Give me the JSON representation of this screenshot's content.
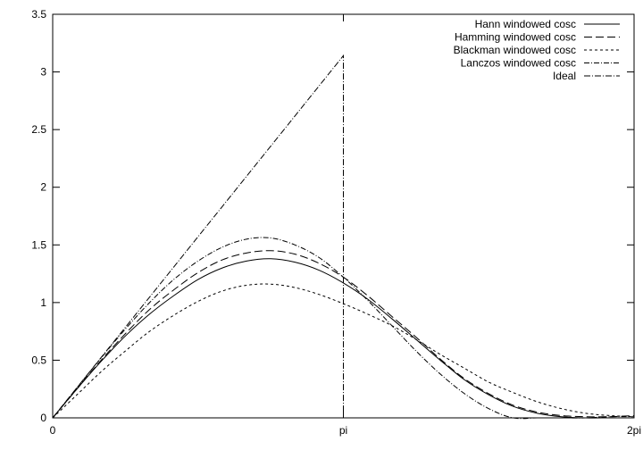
{
  "chart_data": {
    "type": "line",
    "title": "",
    "xlabel": "",
    "ylabel": "",
    "xlim": [
      0,
      6.283185307
    ],
    "ylim": [
      0,
      3.5
    ],
    "grid": false,
    "legend_position": "top-right",
    "x_ticks": [
      {
        "value": 0,
        "label": "0"
      },
      {
        "value": 3.141592654,
        "label": "pi"
      },
      {
        "value": 6.283185307,
        "label": "2pi"
      }
    ],
    "y_ticks": [
      {
        "value": 0,
        "label": "0"
      },
      {
        "value": 0.5,
        "label": "0.5"
      },
      {
        "value": 1,
        "label": "1"
      },
      {
        "value": 1.5,
        "label": "1.5"
      },
      {
        "value": 2,
        "label": "2"
      },
      {
        "value": 2.5,
        "label": "2.5"
      },
      {
        "value": 3,
        "label": "3"
      },
      {
        "value": 3.5,
        "label": "3.5"
      }
    ],
    "x": [
      0,
      0.2618,
      0.5236,
      0.7854,
      1.0472,
      1.309,
      1.5708,
      1.8326,
      2.0944,
      2.3562,
      2.618,
      2.8798,
      3.1416,
      3.4034,
      3.6652,
      3.927,
      4.1888,
      4.4506,
      4.7124,
      4.9742,
      5.236,
      5.4978,
      5.7596,
      6.0214,
      6.2832
    ],
    "series": [
      {
        "name": "Hann windowed cosc",
        "color": "#000000",
        "dash": "",
        "values": [
          0,
          0.25,
          0.49,
          0.71,
          0.9,
          1.06,
          1.2,
          1.3,
          1.36,
          1.38,
          1.35,
          1.28,
          1.17,
          1.03,
          0.86,
          0.68,
          0.5,
          0.33,
          0.2,
          0.1,
          0.04,
          0.01,
          0,
          0,
          0
        ]
      },
      {
        "name": "Hamming windowed cosc",
        "color": "#000000",
        "dash": "9 4",
        "values": [
          0,
          0.25,
          0.5,
          0.73,
          0.94,
          1.11,
          1.26,
          1.37,
          1.43,
          1.45,
          1.42,
          1.34,
          1.22,
          1.06,
          0.88,
          0.7,
          0.51,
          0.34,
          0.21,
          0.11,
          0.05,
          0.02,
          0.01,
          0.01,
          0.02
        ]
      },
      {
        "name": "Blackman windowed cosc",
        "color": "#000000",
        "dash": "3 3",
        "values": [
          0,
          0.2,
          0.4,
          0.58,
          0.75,
          0.89,
          1.01,
          1.1,
          1.15,
          1.16,
          1.13,
          1.07,
          0.99,
          0.9,
          0.8,
          0.68,
          0.55,
          0.43,
          0.31,
          0.22,
          0.14,
          0.08,
          0.04,
          0.02,
          0.01
        ]
      },
      {
        "name": "Lanczos windowed cosc",
        "color": "#000000",
        "dash": "6 2 1 2",
        "values": [
          0,
          0.26,
          0.52,
          0.77,
          1.0,
          1.2,
          1.36,
          1.48,
          1.55,
          1.56,
          1.5,
          1.39,
          1.22,
          1.02,
          0.8,
          0.58,
          0.38,
          0.21,
          0.08,
          0,
          -0.03,
          -0.02,
          0,
          0.01,
          0.01
        ]
      },
      {
        "name": "Ideal",
        "color": "#000000",
        "dash": "7 2 1 2",
        "points": [
          [
            0,
            0
          ],
          [
            3.141592654,
            3.141592654
          ],
          [
            3.141592654,
            0
          ]
        ]
      }
    ]
  }
}
